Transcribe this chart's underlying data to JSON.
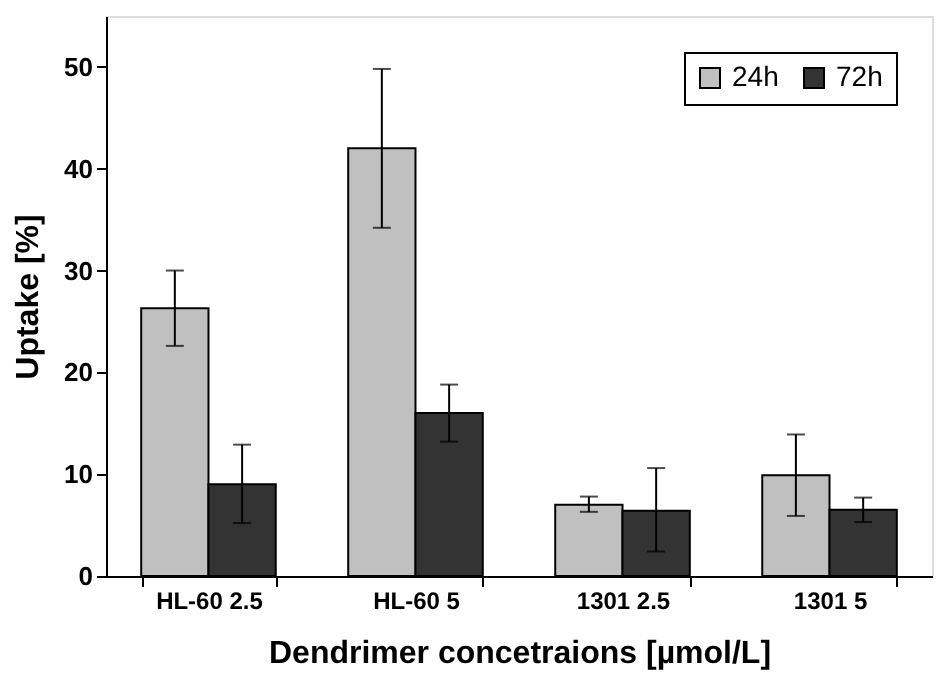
{
  "chart_data": {
    "type": "bar",
    "xlabel": "Dendrimer concetraions [µmol/L]",
    "ylabel": "Uptake [%]",
    "categories": [
      "HL-60 2.5",
      "HL-60 5",
      "1301 2.5",
      "1301 5"
    ],
    "series": [
      {
        "name": "24h",
        "color": "#c0c0c0",
        "values": [
          26.3,
          42.0,
          7.0,
          9.9
        ],
        "errors": [
          [
            22.6,
            30.0
          ],
          [
            34.2,
            49.8
          ],
          [
            6.3,
            7.8
          ],
          [
            5.9,
            13.9
          ]
        ]
      },
      {
        "name": "72h",
        "color": "#333333",
        "values": [
          9.0,
          16.0,
          6.4,
          6.5
        ],
        "errors": [
          [
            5.2,
            12.9
          ],
          [
            13.2,
            18.8
          ],
          [
            2.4,
            10.6
          ],
          [
            5.3,
            7.7
          ]
        ]
      }
    ],
    "ylim": [
      0,
      55
    ],
    "yticks": [
      0,
      10,
      20,
      30,
      40,
      50
    ],
    "grid": false,
    "legend": "top right"
  }
}
